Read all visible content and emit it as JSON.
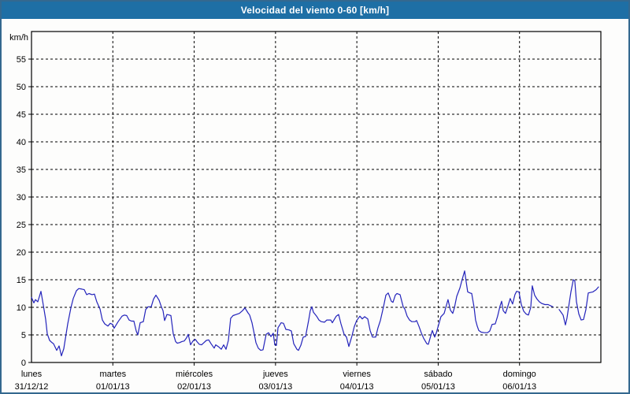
{
  "window": {
    "title": "Velocidad del viento 0-60 [km/h]"
  },
  "colors": {
    "title_bg": "#1e6fa5",
    "title_text": "#ffffff",
    "frame_border": "#34688f",
    "plot_bg": "#fdfdfc",
    "grid": "#000000",
    "axis": "#000000",
    "line": "#2323bb",
    "label": "#000000"
  },
  "chart_data": {
    "type": "line",
    "title": "Velocidad del viento 0-60 [km/h]",
    "ylabel": "km/h",
    "ylim": [
      0,
      60
    ],
    "y_ticks": [
      0,
      5,
      10,
      15,
      20,
      25,
      30,
      35,
      40,
      45,
      50,
      55
    ],
    "xlim_days": [
      0,
      7
    ],
    "grid": "dashed",
    "legend": "none",
    "x_days": [
      {
        "name": "lunes",
        "date": "31/12/12"
      },
      {
        "name": "martes",
        "date": "01/01/13"
      },
      {
        "name": "miércoles",
        "date": "02/01/13"
      },
      {
        "name": "jueves",
        "date": "03/01/13"
      },
      {
        "name": "viernes",
        "date": "04/01/13"
      },
      {
        "name": "sábado",
        "date": "05/01/13"
      },
      {
        "name": "domingo",
        "date": "06/01/13"
      }
    ],
    "series": [
      {
        "name": "velocidad del viento",
        "unit": "km/h",
        "segments": [
          [
            [
              0.0,
              11.8
            ],
            [
              0.029,
              10.8
            ],
            [
              0.048,
              11.4
            ],
            [
              0.077,
              11.0
            ],
            [
              0.116,
              12.9
            ],
            [
              0.145,
              10.4
            ],
            [
              0.174,
              7.8
            ],
            [
              0.194,
              5.2
            ],
            [
              0.223,
              4.0
            ],
            [
              0.252,
              3.6
            ],
            [
              0.271,
              3.4
            ],
            [
              0.31,
              2.2
            ],
            [
              0.339,
              3.0
            ],
            [
              0.368,
              1.2
            ],
            [
              0.397,
              2.5
            ],
            [
              0.416,
              4.3
            ],
            [
              0.445,
              7.0
            ],
            [
              0.484,
              9.9
            ],
            [
              0.513,
              11.6
            ],
            [
              0.552,
              13.0
            ],
            [
              0.581,
              13.4
            ],
            [
              0.62,
              13.3
            ],
            [
              0.649,
              13.2
            ],
            [
              0.678,
              12.3
            ],
            [
              0.707,
              12.5
            ],
            [
              0.745,
              12.3
            ],
            [
              0.774,
              12.4
            ],
            [
              0.803,
              11.0
            ],
            [
              0.842,
              9.7
            ],
            [
              0.871,
              7.7
            ],
            [
              0.9,
              7.0
            ],
            [
              0.939,
              6.6
            ],
            [
              0.968,
              7.1
            ],
            [
              0.997,
              6.9
            ],
            [
              1.016,
              6.2
            ],
            [
              1.065,
              7.4
            ],
            [
              1.113,
              8.4
            ],
            [
              1.142,
              8.6
            ],
            [
              1.171,
              8.5
            ],
            [
              1.2,
              7.7
            ],
            [
              1.23,
              7.5
            ],
            [
              1.259,
              7.5
            ],
            [
              1.288,
              5.7
            ],
            [
              1.307,
              5.0
            ],
            [
              1.336,
              7.2
            ],
            [
              1.375,
              7.4
            ],
            [
              1.404,
              9.6
            ],
            [
              1.433,
              10.1
            ],
            [
              1.472,
              10.1
            ],
            [
              1.501,
              11.5
            ],
            [
              1.53,
              12.2
            ],
            [
              1.568,
              11.3
            ],
            [
              1.597,
              10.1
            ],
            [
              1.617,
              9.4
            ],
            [
              1.636,
              7.6
            ],
            [
              1.665,
              8.7
            ],
            [
              1.694,
              8.6
            ],
            [
              1.714,
              8.5
            ],
            [
              1.743,
              5.2
            ],
            [
              1.772,
              3.8
            ],
            [
              1.791,
              3.5
            ],
            [
              1.82,
              3.6
            ],
            [
              1.849,
              3.8
            ],
            [
              1.878,
              3.9
            ],
            [
              1.907,
              4.5
            ],
            [
              1.927,
              5.1
            ],
            [
              1.956,
              3.2
            ],
            [
              1.985,
              3.9
            ],
            [
              2.014,
              4.2
            ],
            [
              2.033,
              3.8
            ],
            [
              2.062,
              3.3
            ],
            [
              2.091,
              3.2
            ],
            [
              2.12,
              3.6
            ],
            [
              2.149,
              4.0
            ],
            [
              2.178,
              4.1
            ],
            [
              2.207,
              3.4
            ],
            [
              2.246,
              2.6
            ],
            [
              2.265,
              3.2
            ],
            [
              2.304,
              2.8
            ],
            [
              2.333,
              2.4
            ],
            [
              2.362,
              3.2
            ],
            [
              2.391,
              2.4
            ],
            [
              2.42,
              4.0
            ],
            [
              2.449,
              8.0
            ],
            [
              2.478,
              8.5
            ],
            [
              2.517,
              8.7
            ],
            [
              2.556,
              8.9
            ],
            [
              2.595,
              9.4
            ],
            [
              2.624,
              9.9
            ],
            [
              2.662,
              9.0
            ],
            [
              2.682,
              8.6
            ],
            [
              2.711,
              7.2
            ],
            [
              2.73,
              5.8
            ],
            [
              2.759,
              3.6
            ],
            [
              2.788,
              2.6
            ],
            [
              2.817,
              2.2
            ],
            [
              2.846,
              2.3
            ],
            [
              2.885,
              5.1
            ],
            [
              2.914,
              5.4
            ],
            [
              2.943,
              4.7
            ],
            [
              2.972,
              5.3
            ],
            [
              2.991,
              3.2
            ],
            [
              3.011,
              3.1
            ],
            [
              3.03,
              6.3
            ],
            [
              3.069,
              7.2
            ],
            [
              3.098,
              7.1
            ],
            [
              3.127,
              6.0
            ],
            [
              3.166,
              5.9
            ],
            [
              3.195,
              5.7
            ],
            [
              3.224,
              3.4
            ],
            [
              3.263,
              2.4
            ],
            [
              3.282,
              2.2
            ],
            [
              3.311,
              3.1
            ],
            [
              3.34,
              4.6
            ],
            [
              3.369,
              4.7
            ],
            [
              3.408,
              7.7
            ],
            [
              3.427,
              9.4
            ],
            [
              3.447,
              10.1
            ],
            [
              3.466,
              9.1
            ],
            [
              3.505,
              8.4
            ],
            [
              3.534,
              7.7
            ],
            [
              3.563,
              7.4
            ],
            [
              3.602,
              7.3
            ],
            [
              3.631,
              7.7
            ],
            [
              3.679,
              7.7
            ],
            [
              3.698,
              7.2
            ],
            [
              3.747,
              8.4
            ],
            [
              3.776,
              8.7
            ],
            [
              3.805,
              7.0
            ],
            [
              3.844,
              5.1
            ],
            [
              3.873,
              4.6
            ],
            [
              3.902,
              2.9
            ],
            [
              3.94,
              4.8
            ],
            [
              3.969,
              6.5
            ],
            [
              3.998,
              7.6
            ],
            [
              4.037,
              8.4
            ],
            [
              4.066,
              7.9
            ],
            [
              4.095,
              8.3
            ],
            [
              4.134,
              7.9
            ],
            [
              4.163,
              5.8
            ],
            [
              4.192,
              4.6
            ],
            [
              4.231,
              4.6
            ],
            [
              4.26,
              6.3
            ],
            [
              4.289,
              7.6
            ],
            [
              4.328,
              10.1
            ],
            [
              4.357,
              12.2
            ],
            [
              4.386,
              12.6
            ],
            [
              4.424,
              11.1
            ],
            [
              4.444,
              10.9
            ],
            [
              4.473,
              12.2
            ],
            [
              4.492,
              12.5
            ],
            [
              4.511,
              12.4
            ],
            [
              4.531,
              12.3
            ],
            [
              4.57,
              10.1
            ],
            [
              4.589,
              9.7
            ],
            [
              4.618,
              8.4
            ],
            [
              4.647,
              7.7
            ],
            [
              4.676,
              7.4
            ],
            [
              4.715,
              7.4
            ],
            [
              4.734,
              7.6
            ],
            [
              4.763,
              6.6
            ],
            [
              4.792,
              5.4
            ],
            [
              4.821,
              4.4
            ],
            [
              4.86,
              3.4
            ],
            [
              4.879,
              3.3
            ],
            [
              4.908,
              4.8
            ],
            [
              4.928,
              5.8
            ],
            [
              4.957,
              4.6
            ],
            [
              4.976,
              5.3
            ],
            [
              5.005,
              6.8
            ],
            [
              5.034,
              8.3
            ],
            [
              5.073,
              8.9
            ],
            [
              5.121,
              11.4
            ],
            [
              5.15,
              9.5
            ],
            [
              5.179,
              8.9
            ],
            [
              5.199,
              9.9
            ],
            [
              5.228,
              12.0
            ],
            [
              5.267,
              13.5
            ],
            [
              5.296,
              15.1
            ],
            [
              5.325,
              16.6
            ],
            [
              5.344,
              14.6
            ],
            [
              5.363,
              12.8
            ],
            [
              5.392,
              12.6
            ],
            [
              5.412,
              12.5
            ],
            [
              5.441,
              10.0
            ],
            [
              5.46,
              7.7
            ],
            [
              5.48,
              6.6
            ],
            [
              5.499,
              5.8
            ],
            [
              5.528,
              5.5
            ],
            [
              5.567,
              5.4
            ],
            [
              5.605,
              5.4
            ],
            [
              5.634,
              5.7
            ],
            [
              5.663,
              6.9
            ],
            [
              5.702,
              7.0
            ],
            [
              5.731,
              8.4
            ],
            [
              5.76,
              10.2
            ],
            [
              5.78,
              11.1
            ],
            [
              5.799,
              9.4
            ],
            [
              5.828,
              8.9
            ],
            [
              5.857,
              10.2
            ],
            [
              5.886,
              11.6
            ],
            [
              5.915,
              10.6
            ],
            [
              5.944,
              12.3
            ],
            [
              5.964,
              12.9
            ],
            [
              5.993,
              12.8
            ],
            [
              6.022,
              10.5
            ],
            [
              6.051,
              9.3
            ],
            [
              6.08,
              8.8
            ],
            [
              6.109,
              8.6
            ],
            [
              6.138,
              10.0
            ],
            [
              6.157,
              13.9
            ],
            [
              6.186,
              12.2
            ],
            [
              6.215,
              11.5
            ],
            [
              6.244,
              11.0
            ],
            [
              6.273,
              10.7
            ],
            [
              6.312,
              10.5
            ],
            [
              6.351,
              10.5
            ],
            [
              6.38,
              10.3
            ],
            [
              6.409,
              10.1
            ]
          ],
          [
            [
              6.487,
              9.6
            ],
            [
              6.516,
              9.0
            ],
            [
              6.535,
              8.6
            ],
            [
              6.564,
              6.8
            ],
            [
              6.583,
              8.0
            ],
            [
              6.603,
              10.0
            ],
            [
              6.632,
              12.8
            ],
            [
              6.661,
              15.0
            ],
            [
              6.68,
              14.8
            ],
            [
              6.7,
              11.0
            ],
            [
              6.729,
              8.8
            ],
            [
              6.758,
              7.7
            ],
            [
              6.787,
              7.8
            ],
            [
              6.816,
              9.6
            ],
            [
              6.845,
              12.6
            ],
            [
              6.874,
              12.7
            ],
            [
              6.903,
              12.8
            ],
            [
              6.942,
              13.2
            ],
            [
              6.971,
              13.7
            ]
          ]
        ]
      }
    ]
  }
}
